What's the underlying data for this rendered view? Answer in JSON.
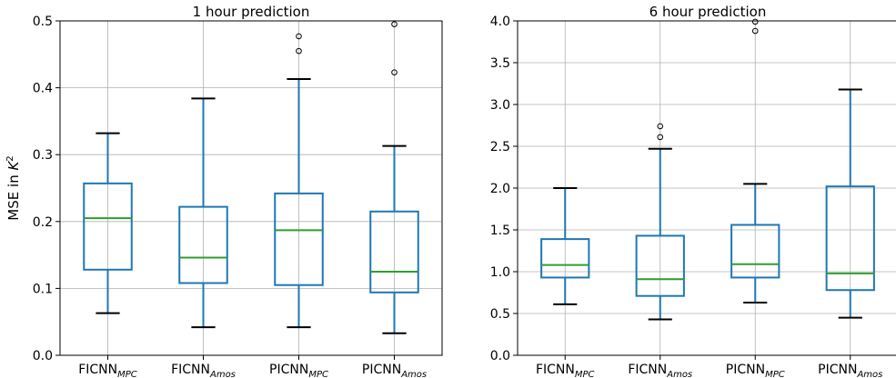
{
  "chart_data": [
    {
      "type": "box",
      "title": "1 hour prediction",
      "ylabel": "MSE in K",
      "ylabel_superscript": "2",
      "ylim": [
        0,
        0.5
      ],
      "yticks": [
        0.0,
        0.1,
        0.2,
        0.3,
        0.4,
        0.5
      ],
      "ytick_labels": [
        "0.0",
        "0.1",
        "0.2",
        "0.3",
        "0.4",
        "0.5"
      ],
      "grid": true,
      "categories": [
        {
          "base": "FICNN",
          "sub": "MPC"
        },
        {
          "base": "FICNN",
          "sub": "Amos"
        },
        {
          "base": "PICNN",
          "sub": "MPC"
        },
        {
          "base": "PICNN",
          "sub": "Amos"
        }
      ],
      "boxes": [
        {
          "whisker_low": 0.063,
          "q1": 0.128,
          "median": 0.205,
          "q3": 0.257,
          "whisker_high": 0.332,
          "outliers": []
        },
        {
          "whisker_low": 0.042,
          "q1": 0.108,
          "median": 0.146,
          "q3": 0.222,
          "whisker_high": 0.384,
          "outliers": []
        },
        {
          "whisker_low": 0.042,
          "q1": 0.105,
          "median": 0.187,
          "q3": 0.242,
          "whisker_high": 0.413,
          "outliers": [
            0.455,
            0.477
          ]
        },
        {
          "whisker_low": 0.033,
          "q1": 0.094,
          "median": 0.125,
          "q3": 0.215,
          "whisker_high": 0.313,
          "outliers": [
            0.423,
            0.495
          ]
        }
      ]
    },
    {
      "type": "box",
      "title": "6 hour prediction",
      "ylabel": "",
      "ylim": [
        0,
        4.0
      ],
      "yticks": [
        0.0,
        0.5,
        1.0,
        1.5,
        2.0,
        2.5,
        3.0,
        3.5,
        4.0
      ],
      "ytick_labels": [
        "0.0",
        "0.5",
        "1.0",
        "1.5",
        "2.0",
        "2.5",
        "3.0",
        "3.5",
        "4.0"
      ],
      "grid": true,
      "categories": [
        {
          "base": "FICNN",
          "sub": "MPC"
        },
        {
          "base": "FICNN",
          "sub": "Amos"
        },
        {
          "base": "PICNN",
          "sub": "MPC"
        },
        {
          "base": "PICNN",
          "sub": "Amos"
        }
      ],
      "boxes": [
        {
          "whisker_low": 0.61,
          "q1": 0.93,
          "median": 1.08,
          "q3": 1.39,
          "whisker_high": 2.0,
          "outliers": []
        },
        {
          "whisker_low": 0.43,
          "q1": 0.71,
          "median": 0.91,
          "q3": 1.43,
          "whisker_high": 2.47,
          "outliers": [
            2.61,
            2.74
          ]
        },
        {
          "whisker_low": 0.63,
          "q1": 0.93,
          "median": 1.09,
          "q3": 1.56,
          "whisker_high": 2.05,
          "outliers": [
            3.88,
            3.99
          ]
        },
        {
          "whisker_low": 0.45,
          "q1": 0.78,
          "median": 0.98,
          "q3": 2.02,
          "whisker_high": 3.18,
          "outliers": []
        }
      ]
    }
  ],
  "colors": {
    "box": "#1f77b4",
    "median": "#2ca02c",
    "whisker_cap": "#000000",
    "grid": "#b0b0b0",
    "axis": "#000000"
  }
}
